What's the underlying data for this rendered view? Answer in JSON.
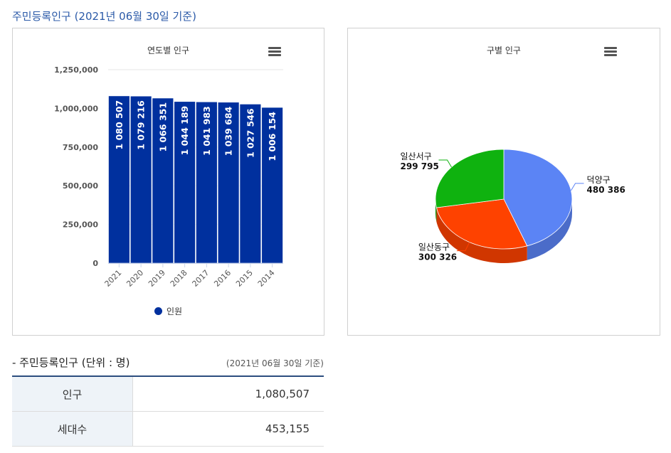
{
  "page_title": "주민등록인구 (2021년 06월 30일 기준)",
  "bar_chart": {
    "title": "연도별 인구",
    "legend_label": "인원",
    "color": "#00309e"
  },
  "pie_chart": {
    "title": "구별 인구"
  },
  "chart_data": [
    {
      "type": "bar",
      "title": "연도별 인구",
      "categories": [
        "2021",
        "2020",
        "2019",
        "2018",
        "2017",
        "2016",
        "2015",
        "2014"
      ],
      "series": [
        {
          "name": "인원",
          "values": [
            1080507,
            1079216,
            1066351,
            1044189,
            1041983,
            1039684,
            1027546,
            1006154
          ]
        }
      ],
      "data_labels": [
        "1 080 507",
        "1 079 216",
        "1 066 351",
        "1 044 189",
        "1 041 983",
        "1 039 684",
        "1 027 546",
        "1 006 154"
      ],
      "yticks": [
        "0",
        "250,000",
        "500,000",
        "750,000",
        "1,000,000",
        "1,250,000"
      ],
      "ylim": [
        0,
        1250000
      ],
      "legend": "bottom-center",
      "grid": true
    },
    {
      "type": "pie",
      "title": "구별 인구",
      "slices": [
        {
          "name": "덕양구",
          "value": 480386,
          "label": "480 386",
          "color": "#5b84f5"
        },
        {
          "name": "일산동구",
          "value": 300326,
          "label": "300 326",
          "color": "#fe4200"
        },
        {
          "name": "일산서구",
          "value": 299795,
          "label": "299 795",
          "color": "#0fb20f"
        }
      ],
      "style": "3d"
    }
  ],
  "summary": {
    "title": "- 주민등록인구 (단위 : 명)",
    "note": "(2021년 06월 30일 기준)",
    "rows": [
      {
        "label": "인구",
        "value": "1,080,507"
      },
      {
        "label": "세대수",
        "value": "453,155"
      }
    ]
  }
}
